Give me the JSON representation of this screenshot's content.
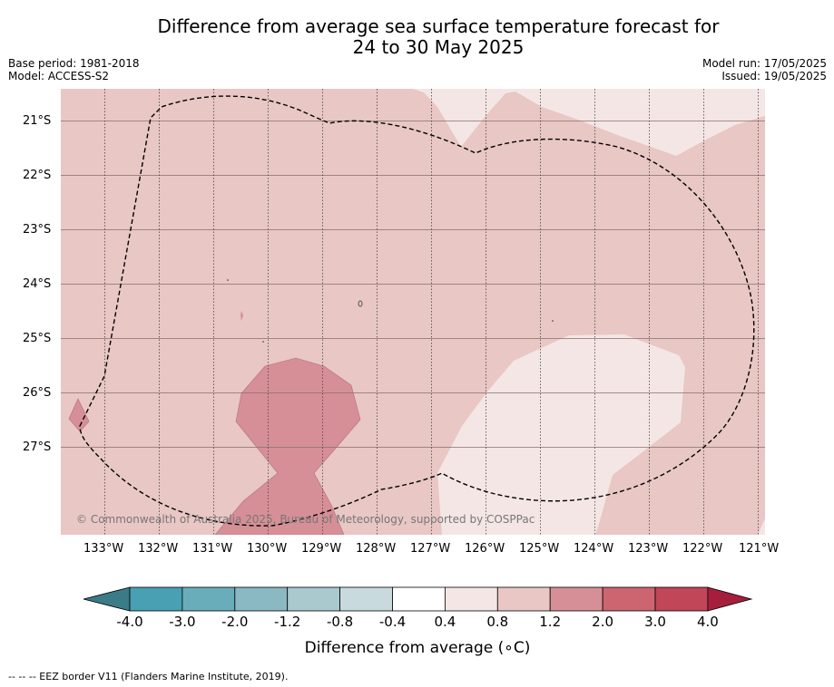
{
  "title_line1": "Difference from average sea surface temperature forecast for",
  "title_line2": "24 to 30 May 2025",
  "meta_left": {
    "base_period": "Base period: 1981-2018",
    "model": "Model: ACCESS-S2"
  },
  "meta_right": {
    "model_run": "Model run: 17/05/2025",
    "issued": "Issued: 19/05/2025"
  },
  "map": {
    "lat_labels": [
      "21°S",
      "22°S",
      "23°S",
      "24°S",
      "25°S",
      "26°S",
      "27°S"
    ],
    "lon_labels": [
      "133°W",
      "132°W",
      "131°W",
      "130°W",
      "129°W",
      "128°W",
      "127°W",
      "126°W",
      "125°W",
      "124°W",
      "123°W",
      "122°W",
      "121°W"
    ],
    "copyright": "© Commonwealth of Australia 2025, Bureau of Meteorology, supported by COSPPac",
    "eez_border": "dashed"
  },
  "colorbar": {
    "tick_labels": [
      "-4.0",
      "-3.0",
      "-2.0",
      "-1.2",
      "-0.8",
      "-0.4",
      "0.4",
      "0.8",
      "1.2",
      "2.0",
      "3.0",
      "4.0"
    ],
    "colors": [
      "#3b7b87",
      "#48a0b2",
      "#6aadba",
      "#8ab8c3",
      "#a9c9ce",
      "#c8dade",
      "#ffffff",
      "#f4e6e5",
      "#e8c7c4",
      "#d68f96",
      "#cc6570",
      "#c04658",
      "#a51f3c"
    ],
    "title": "Difference from average (∘C)"
  },
  "footnote": "--  --  -- EEZ border V11 (Flanders Marine Institute, 2019)."
}
